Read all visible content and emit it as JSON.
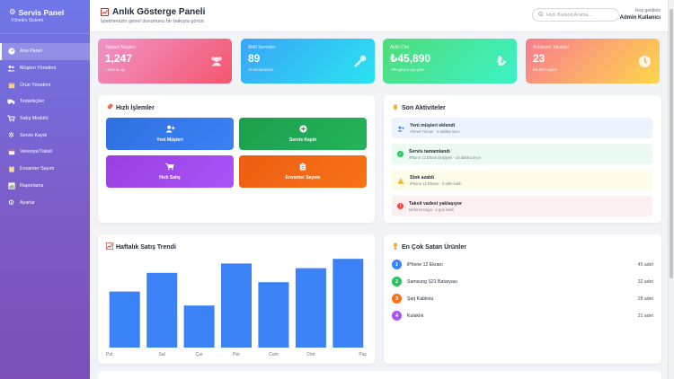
{
  "sidebar": {
    "title": "Servis Panel",
    "subtitle": "Yönetim Sistemi",
    "items": [
      {
        "label": "Ana Panel",
        "icon": "dashboard-icon"
      },
      {
        "label": "Müşteri Yönetimi",
        "icon": "users-icon"
      },
      {
        "label": "Ürün Yönetimi",
        "icon": "box-icon"
      },
      {
        "label": "Tedarikçiler",
        "icon": "truck-icon"
      },
      {
        "label": "Satış Modülü",
        "icon": "cart-icon"
      },
      {
        "label": "Servis Kaydı",
        "icon": "gear-icon"
      },
      {
        "label": "Veresiye/Taksit",
        "icon": "calendar-icon"
      },
      {
        "label": "Envanter Sayım",
        "icon": "clipboard-icon"
      },
      {
        "label": "Raporlama",
        "icon": "chart-icon"
      },
      {
        "label": "Ayarlar",
        "icon": "settings-icon"
      }
    ]
  },
  "header": {
    "title": "Anlık Gösterge Paneli",
    "subtitle": "İşletmenizin genel durumunu bir bakışta görün",
    "search_placeholder": "Hızlı Barkod Arama...",
    "greeting": "Hoş geldiniz",
    "user": "Admin Kullanıcı"
  },
  "stats": [
    {
      "label": "Toplam Müşteri",
      "value": "1,247",
      "note": "+12% bu ay",
      "icon": "users-icon"
    },
    {
      "label": "Aktif Servisler",
      "value": "89",
      "note": "15 tamamlandı",
      "icon": "tools-icon"
    },
    {
      "label": "Aylık Ciro",
      "value": "₺45,890",
      "note": "+8% geçen aya göre",
      "icon": "lira-icon"
    },
    {
      "label": "Bekleyen Taksitler",
      "value": "23",
      "note": "₺8,450 toplam",
      "icon": "clock-icon"
    }
  ],
  "quick_actions": {
    "title": "Hızlı İşlemler",
    "buttons": [
      {
        "label": "Yeni Müşteri",
        "icon": "user-plus-icon",
        "color": "#2f6fe0"
      },
      {
        "label": "Servis Kaydı",
        "icon": "plus-circle-icon",
        "color": "#1e9e4e"
      },
      {
        "label": "Hızlı Satış",
        "icon": "cart-icon",
        "color": "#9a3fe0"
      },
      {
        "label": "Envanter Sayımı",
        "icon": "clipboard-icon",
        "color": "#ec5d14"
      }
    ]
  },
  "activities": {
    "title": "Son Aktiviteler",
    "items": [
      {
        "title": "Yeni müşteri eklendi",
        "sub": "Ahmet Yılmaz - 2 dakika önce",
        "icon": "user-plus-icon",
        "bg": "#eef4ff",
        "color": "#3b82f6"
      },
      {
        "title": "Servis tamamlandı",
        "sub": "iPhone 12 Ekran Değişimi - 15 dakika önce",
        "icon": "check-circle-icon",
        "bg": "#ecfbf1",
        "color": "#22c55e"
      },
      {
        "title": "Stok azaldı",
        "sub": "iPhone 12 Ekranı - 3 adet kaldı",
        "icon": "warning-icon",
        "bg": "#fefbe8",
        "color": "#eab308"
      },
      {
        "title": "Taksit vadesi yaklaşıyor",
        "sub": "Mehmet Kaya - 2 gün kaldı",
        "icon": "alert-circle-icon",
        "bg": "#fdf0f0",
        "color": "#ef4444"
      }
    ]
  },
  "weekly_sales": {
    "title": "Haftalık Satış Trendi"
  },
  "chart_data": {
    "type": "bar",
    "categories": [
      "Pzt",
      "Sal",
      "Çar",
      "Per",
      "Cum",
      "Cmt",
      "Paz"
    ],
    "values": [
      60,
      80,
      45,
      90,
      70,
      85,
      95
    ],
    "ylim": [
      0,
      100
    ],
    "color": "#3b82f6"
  },
  "top_products": {
    "title": "En Çok Satan Ürünler",
    "items": [
      {
        "rank": "1",
        "name": "iPhone 12 Ekranı",
        "count": "45 adet",
        "color": "#3b82f6"
      },
      {
        "rank": "2",
        "name": "Samsung S21 Bataryası",
        "count": "32 adet",
        "color": "#22c55e"
      },
      {
        "rank": "3",
        "name": "Şarj Kablosu",
        "count": "28 adet",
        "color": "#f97316"
      },
      {
        "rank": "4",
        "name": "Kulaklık",
        "count": "21 adet",
        "color": "#a855f7"
      }
    ]
  }
}
